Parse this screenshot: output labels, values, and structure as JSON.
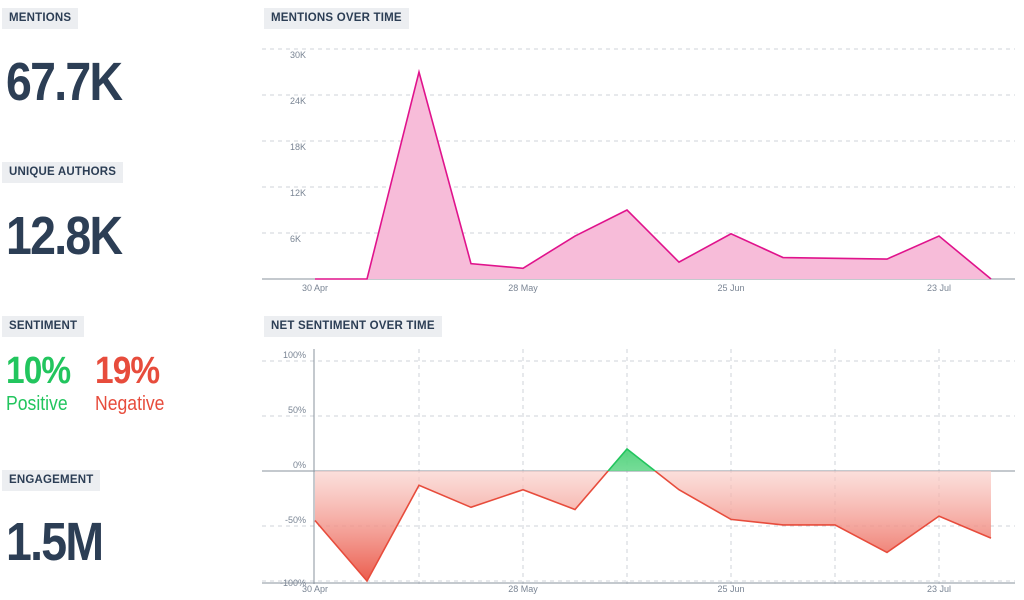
{
  "kpis": {
    "mentions": {
      "label": "MENTIONS",
      "value": "67.7K"
    },
    "unique_authors": {
      "label": "UNIQUE AUTHORS",
      "value": "12.8K"
    },
    "sentiment": {
      "label": "SENTIMENT",
      "positive_value": "10%",
      "positive_label": "Positive",
      "negative_value": "19%",
      "negative_label": "Negative"
    },
    "engagement": {
      "label": "ENGAGEMENT",
      "value": "1.5M"
    }
  },
  "colors": {
    "positive": "#22c55e",
    "negative": "#e74c3c",
    "mentions_line": "#e0138c",
    "mentions_fill": "#f7bcd9",
    "text": "#2c3e55"
  },
  "chart_data": [
    {
      "type": "area",
      "title": "MENTIONS OVER TIME",
      "xlabel": "",
      "ylabel": "",
      "x_tick_labels": [
        "30 Apr",
        "28 May",
        "25 Jun",
        "23 Jul"
      ],
      "y_tick_labels": [
        "6K",
        "12K",
        "18K",
        "24K",
        "30K"
      ],
      "ylim": [
        0,
        30000
      ],
      "grid": true,
      "series": [
        {
          "values": [
            0,
            0,
            27000,
            2000,
            1400,
            5600,
            9000,
            2200,
            5900,
            2800,
            2700,
            2600,
            5600,
            0
          ]
        }
      ]
    },
    {
      "type": "area",
      "title": "NET SENTIMENT OVER TIME",
      "xlabel": "",
      "ylabel": "",
      "x_tick_labels": [
        "30 Apr",
        "28 May",
        "25 Jun",
        "23 Jul"
      ],
      "y_tick_labels": [
        "100%",
        "50%",
        "0%",
        "-50%",
        "-100%"
      ],
      "ylim": [
        -100,
        100
      ],
      "grid": true,
      "series": [
        {
          "values": [
            -45,
            -100,
            -13,
            -33,
            -17,
            -35,
            20,
            -17,
            -44,
            -49,
            -49,
            -74,
            -41,
            -61
          ]
        }
      ]
    }
  ]
}
